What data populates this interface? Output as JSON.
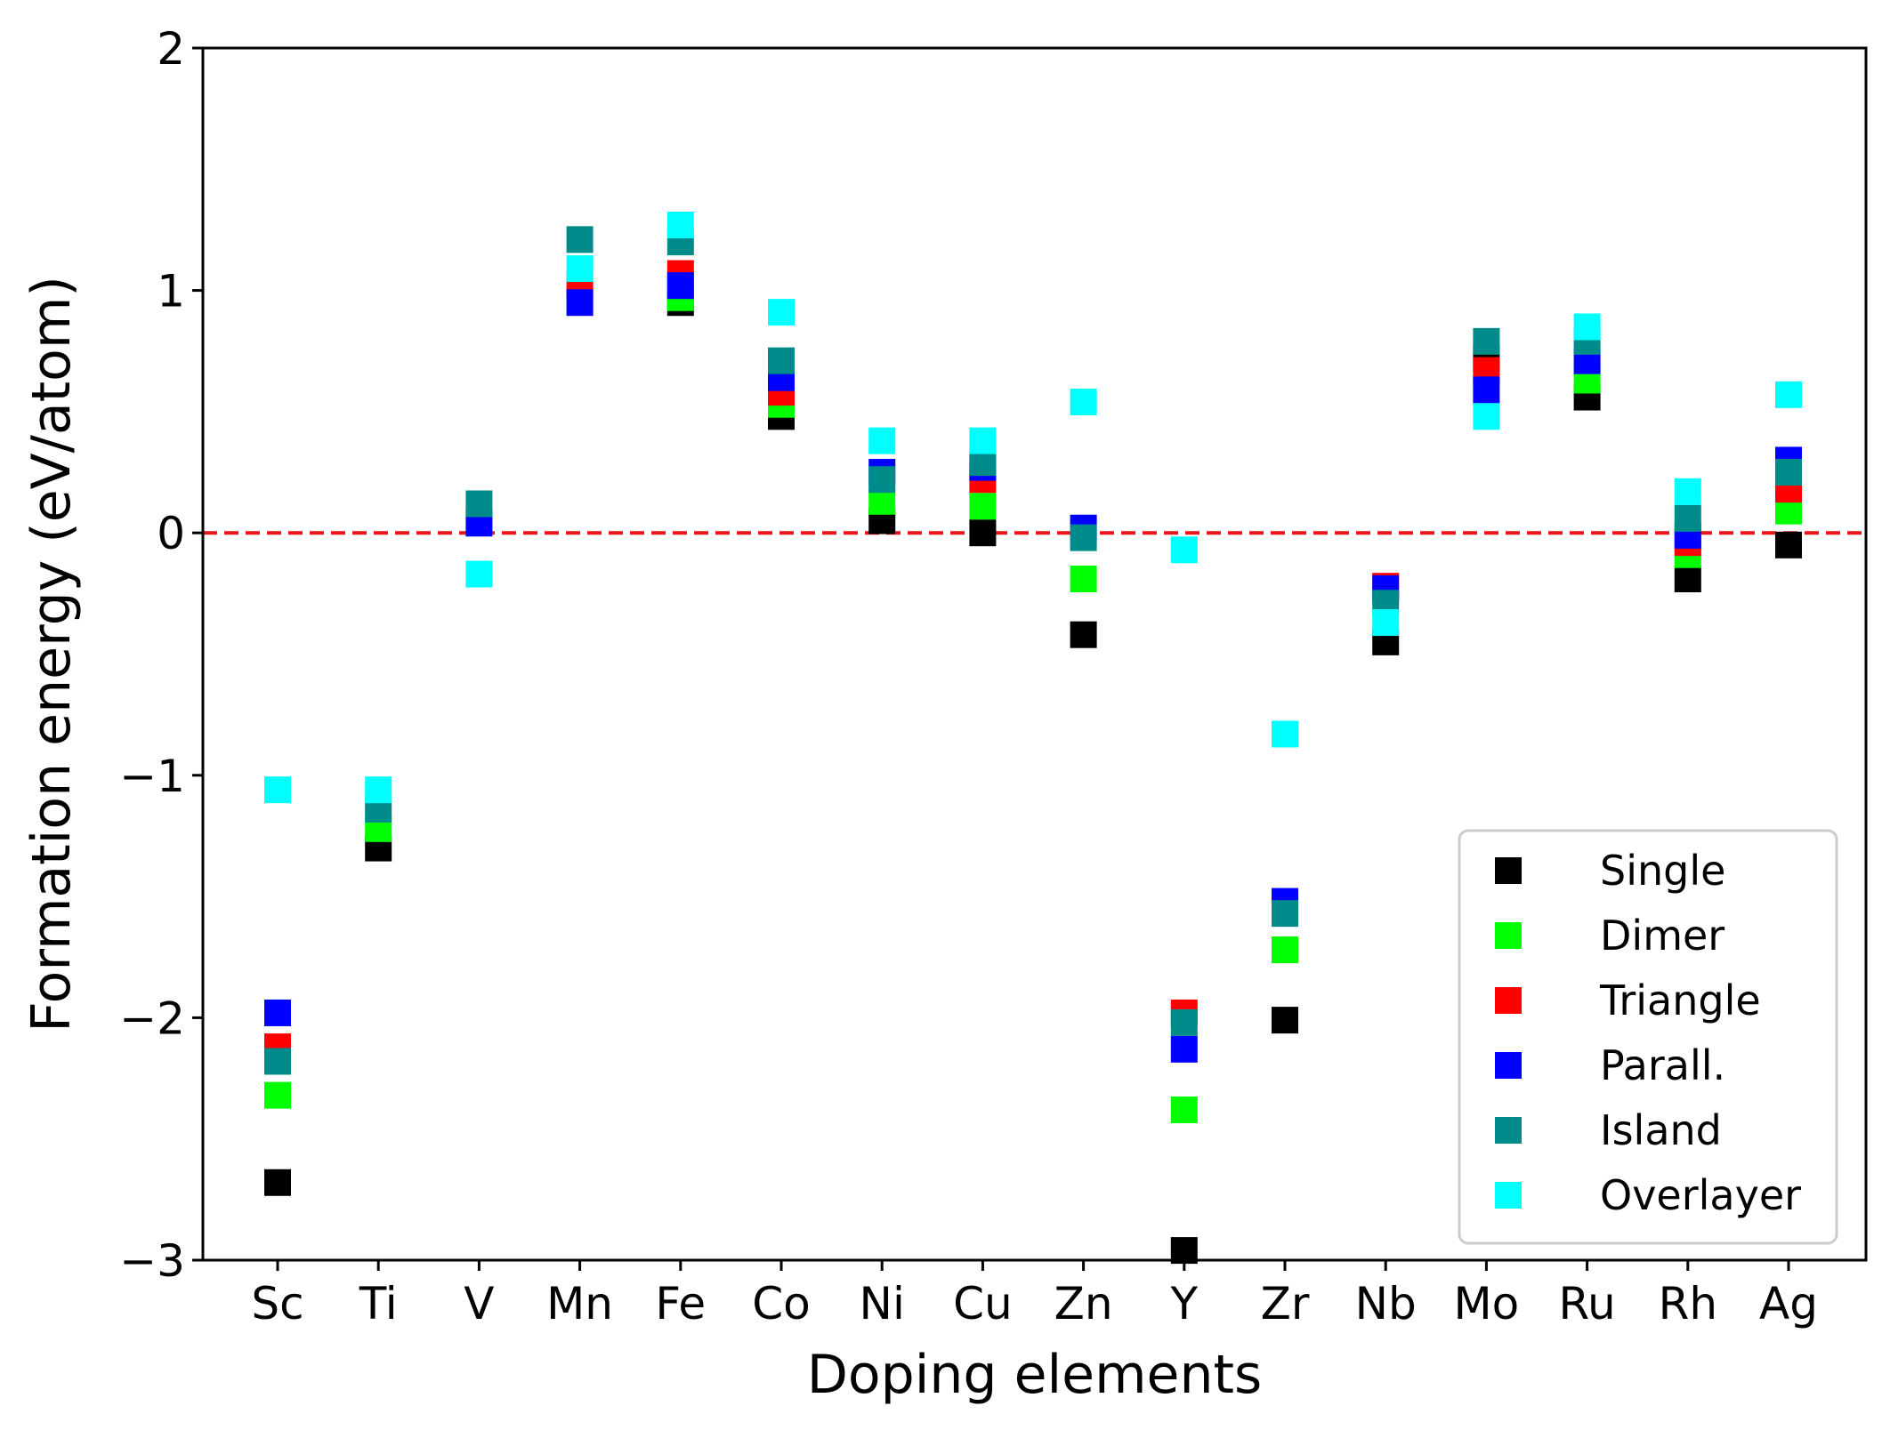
{
  "chart_data": {
    "type": "scatter",
    "title": "",
    "xlabel": "Doping elements",
    "ylabel": "Formation energy (eV/atom)",
    "ylim": [
      -3,
      2
    ],
    "yticks": [
      -3,
      -2,
      -1,
      0,
      1,
      2
    ],
    "ytick_labels": [
      "−3",
      "−2",
      "−1",
      "0",
      "1",
      "2"
    ],
    "categories": [
      "Sc",
      "Ti",
      "V",
      "Mn",
      "Fe",
      "Co",
      "Ni",
      "Cu",
      "Zn",
      "Y",
      "Zr",
      "Nb",
      "Mo",
      "Ru",
      "Rh",
      "Ag"
    ],
    "reference_line": {
      "y": 0,
      "color": "#e8141c",
      "style": "dashed"
    },
    "legend_position": "lower-right",
    "series": [
      {
        "name": "Single",
        "color": "#000000",
        "values": [
          -2.68,
          -1.3,
          null,
          null,
          0.95,
          0.48,
          0.05,
          0.0,
          -0.42,
          -2.96,
          -2.01,
          -0.45,
          0.72,
          0.56,
          -0.19,
          -0.05
        ]
      },
      {
        "name": "Dimer",
        "color": "#00ff00",
        "values": [
          -2.32,
          -1.22,
          null,
          null,
          0.97,
          0.53,
          0.13,
          0.11,
          -0.19,
          -2.38,
          -1.72,
          null,
          null,
          0.63,
          -0.09,
          0.09
        ]
      },
      {
        "name": "Triangle",
        "color": "#ff0000",
        "values": [
          -2.12,
          null,
          null,
          1.02,
          1.07,
          0.58,
          null,
          0.22,
          null,
          -1.98,
          null,
          -0.22,
          0.67,
          null,
          -0.04,
          0.18
        ]
      },
      {
        "name": "Parall.",
        "color": "#0000ff",
        "values": [
          -1.98,
          null,
          0.04,
          0.95,
          1.02,
          0.64,
          0.25,
          0.27,
          0.02,
          -2.13,
          -1.52,
          -0.23,
          0.59,
          0.71,
          -0.01,
          0.3
        ]
      },
      {
        "name": "Island",
        "color": "#008b8b",
        "values": [
          -2.18,
          -1.14,
          0.12,
          1.21,
          1.2,
          0.71,
          0.22,
          0.29,
          -0.02,
          -2.02,
          -1.57,
          -0.29,
          0.79,
          0.79,
          0.06,
          0.25
        ]
      },
      {
        "name": "Overlayer",
        "color": "#00ffff",
        "values": [
          -1.06,
          -1.06,
          -0.17,
          1.09,
          1.27,
          0.91,
          0.38,
          0.38,
          0.54,
          -0.07,
          -0.83,
          -0.37,
          0.48,
          0.85,
          0.17,
          0.57
        ]
      }
    ]
  }
}
